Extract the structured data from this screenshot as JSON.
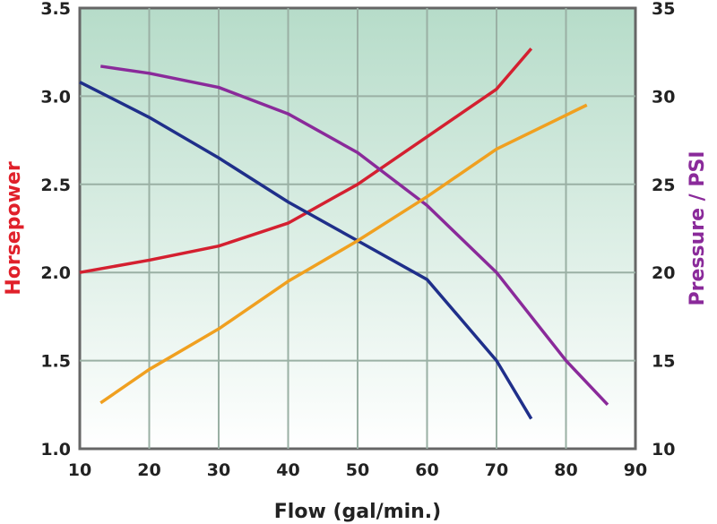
{
  "chart_data": {
    "type": "line",
    "title": "",
    "xlabel": "Flow (gal/min.)",
    "ylabel": "Horsepower",
    "y2label": "Pressure / PSI",
    "xlim": [
      10,
      90
    ],
    "ylim": [
      1.0,
      3.5
    ],
    "y2lim": [
      10,
      35
    ],
    "xticks": [
      "10",
      "20",
      "30",
      "40",
      "50",
      "60",
      "70",
      "80",
      "90"
    ],
    "yticks": [
      "1.0",
      "1.5",
      "2.0",
      "2.5",
      "3.0",
      "3.5"
    ],
    "y2ticks": [
      "10",
      "15",
      "20",
      "25",
      "30",
      "35"
    ],
    "grid": true,
    "colors": {
      "xlabel": "#222222",
      "ylabel": "#e0202a",
      "y2label": "#8a2a9a",
      "background_top": "#b6dcc9",
      "background_bottom": "#ffffff"
    },
    "series": [
      {
        "axis": "left",
        "color": "#d42030",
        "x": [
          10,
          20,
          30,
          40,
          50,
          60,
          70,
          75
        ],
        "y": [
          2.0,
          2.07,
          2.15,
          2.28,
          2.5,
          2.77,
          3.04,
          3.27
        ]
      },
      {
        "axis": "left",
        "color": "#1f2f8a",
        "x": [
          10,
          20,
          30,
          40,
          50,
          60,
          70,
          75
        ],
        "y": [
          3.08,
          2.88,
          2.65,
          2.4,
          2.18,
          1.96,
          1.5,
          1.17
        ]
      },
      {
        "axis": "right",
        "color": "#8a2a9a",
        "x": [
          13,
          20,
          30,
          40,
          50,
          60,
          70,
          80,
          86
        ],
        "y": [
          31.7,
          31.3,
          30.5,
          29.0,
          26.8,
          23.8,
          20.0,
          15.0,
          12.5
        ]
      },
      {
        "axis": "left",
        "color": "#f0a020",
        "x": [
          13,
          20,
          30,
          40,
          50,
          60,
          70,
          83
        ],
        "y": [
          1.26,
          1.45,
          1.68,
          1.95,
          2.18,
          2.43,
          2.7,
          2.95
        ]
      }
    ]
  }
}
